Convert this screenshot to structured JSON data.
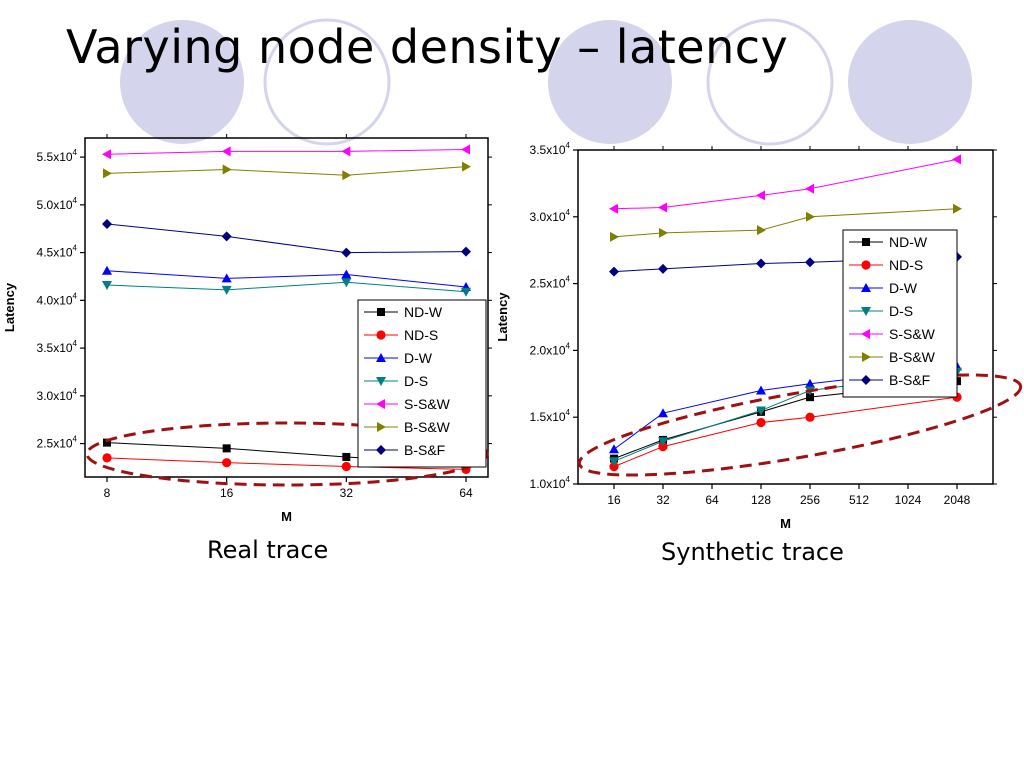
{
  "slide": {
    "title": "Varying node density – latency",
    "caption_left": "Real trace",
    "caption_right": "Synthetic trace"
  },
  "colors": {
    "deco_fill": "#d4d4ec",
    "deco_stroke": "#d4d4ec",
    "highlight_ellipse": "#a01010"
  },
  "chart_data": [
    {
      "type": "line",
      "title": "",
      "xlabel": "M",
      "ylabel": "Latency",
      "x": [
        "8",
        "16",
        "32",
        "64"
      ],
      "y_ticks": [
        25000,
        30000,
        35000,
        40000,
        45000,
        50000,
        55000
      ],
      "y_tick_labels": [
        {
          "m": "2.5x10",
          "e": "4"
        },
        {
          "m": "3.0x10",
          "e": "4"
        },
        {
          "m": "3.5x10",
          "e": "4"
        },
        {
          "m": "4.0x10",
          "e": "4"
        },
        {
          "m": "4.5x10",
          "e": "4"
        },
        {
          "m": "5.0x10",
          "e": "4"
        },
        {
          "m": "5.5x10",
          "e": "4"
        }
      ],
      "ylim": [
        21500,
        57000
      ],
      "grid": false,
      "legend": "right, middle",
      "highlight": "dashed ellipse around ND-W and ND-S",
      "series": [
        {
          "name": "ND-W",
          "color": "#000000",
          "marker": "square",
          "values": [
            25100,
            24500,
            23600,
            22900
          ]
        },
        {
          "name": "ND-S",
          "color": "#ff0000",
          "marker": "circle",
          "values": [
            23500,
            23000,
            22600,
            22300
          ]
        },
        {
          "name": "D-W",
          "color": "#0000ff",
          "marker": "tri-up",
          "values": [
            43100,
            42300,
            42700,
            41400
          ]
        },
        {
          "name": "D-S",
          "color": "#008080",
          "marker": "tri-down",
          "values": [
            41600,
            41100,
            41900,
            40900
          ]
        },
        {
          "name": "S-S&W",
          "color": "#ff00ff",
          "marker": "tri-left",
          "values": [
            55300,
            55600,
            55600,
            55800
          ]
        },
        {
          "name": "B-S&W",
          "color": "#808000",
          "marker": "tri-right",
          "values": [
            53300,
            53700,
            53100,
            54000
          ]
        },
        {
          "name": "B-S&F",
          "color": "#000080",
          "marker": "diamond",
          "values": [
            48000,
            46700,
            45000,
            45100
          ]
        }
      ]
    },
    {
      "type": "line",
      "title": "",
      "xlabel": "M",
      "ylabel": "Latency",
      "x": [
        "16",
        "32",
        "64",
        "128",
        "256",
        "512",
        "1024",
        "2048"
      ],
      "y_ticks": [
        10000,
        15000,
        20000,
        25000,
        30000,
        35000
      ],
      "y_tick_labels": [
        {
          "m": "1.0x10",
          "e": "4"
        },
        {
          "m": "1.5x10",
          "e": "4"
        },
        {
          "m": "2.0x10",
          "e": "4"
        },
        {
          "m": "2.5x10",
          "e": "4"
        },
        {
          "m": "3.0x10",
          "e": "4"
        },
        {
          "m": "3.5x10",
          "e": "4"
        }
      ],
      "ylim": [
        10000,
        35000
      ],
      "grid": false,
      "legend": "top-right",
      "highlight": "dashed ellipse around ND-W, ND-S, D-W and D-S",
      "series": [
        {
          "name": "ND-W",
          "color": "#000000",
          "marker": "square",
          "values": [
            11900,
            13300,
            null,
            15400,
            16500,
            null,
            null,
            17700
          ]
        },
        {
          "name": "ND-S",
          "color": "#ff0000",
          "marker": "circle",
          "values": [
            11300,
            12800,
            null,
            14600,
            15000,
            null,
            null,
            16500
          ]
        },
        {
          "name": "D-W",
          "color": "#0000ff",
          "marker": "tri-up",
          "values": [
            12600,
            15300,
            null,
            17000,
            17500,
            null,
            null,
            18800
          ]
        },
        {
          "name": "D-S",
          "color": "#008080",
          "marker": "tri-down",
          "values": [
            11700,
            13200,
            null,
            15500,
            17000,
            null,
            null,
            18400
          ]
        },
        {
          "name": "S-S&W",
          "color": "#ff00ff",
          "marker": "tri-left",
          "values": [
            30600,
            30700,
            null,
            31600,
            32100,
            null,
            null,
            34300
          ]
        },
        {
          "name": "B-S&W",
          "color": "#808000",
          "marker": "tri-right",
          "values": [
            28500,
            28800,
            null,
            29000,
            30000,
            null,
            null,
            30600
          ]
        },
        {
          "name": "B-S&F",
          "color": "#000080",
          "marker": "diamond",
          "values": [
            25900,
            26100,
            null,
            26500,
            26600,
            null,
            null,
            27000
          ]
        }
      ]
    }
  ]
}
